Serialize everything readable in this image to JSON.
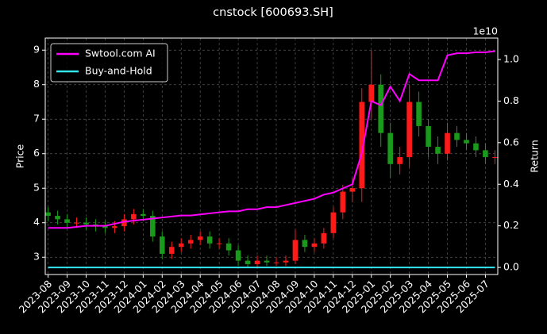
{
  "chart_data": {
    "type": "candlestick",
    "title": "cnstock [600693.SH]",
    "ylabel": "Price",
    "y2label": "Return",
    "y2_offset_label": "1e10",
    "x": [
      0,
      0.5,
      1,
      1.5,
      2,
      2.5,
      3,
      3.5,
      4,
      4.5,
      5,
      5.5,
      6,
      6.5,
      7,
      7.5,
      8,
      8.5,
      9,
      9.5,
      10,
      10.5,
      11,
      11.5,
      12,
      12.5,
      13,
      13.5,
      14,
      14.5,
      15,
      15.5,
      16,
      16.5,
      17,
      17.5,
      18,
      18.5,
      19,
      19.5,
      20,
      20.5,
      21,
      21.5,
      22,
      22.5,
      23,
      23.5
    ],
    "open": [
      4.3,
      4.2,
      4.1,
      4.0,
      4.0,
      3.95,
      3.9,
      3.85,
      3.9,
      4.1,
      4.25,
      4.2,
      3.6,
      3.1,
      3.3,
      3.4,
      3.5,
      3.6,
      3.4,
      3.4,
      3.2,
      2.9,
      2.8,
      2.9,
      2.85,
      2.85,
      2.9,
      3.5,
      3.3,
      3.4,
      3.7,
      4.3,
      4.9,
      5.0,
      7.5,
      8.0,
      6.6,
      5.7,
      5.9,
      7.5,
      6.8,
      6.2,
      6.0,
      6.6,
      6.4,
      6.3,
      6.1,
      5.9
    ],
    "high": [
      4.45,
      4.35,
      4.25,
      4.15,
      4.15,
      4.1,
      4.05,
      4.05,
      4.25,
      4.4,
      4.4,
      4.35,
      3.75,
      3.45,
      3.55,
      3.65,
      3.75,
      3.75,
      3.55,
      3.55,
      3.35,
      3.05,
      3.05,
      3.05,
      3.0,
      3.05,
      3.8,
      3.65,
      3.55,
      3.85,
      4.45,
      5.1,
      5.3,
      7.9,
      9.0,
      8.3,
      6.9,
      6.2,
      8.0,
      7.8,
      7.0,
      6.5,
      6.9,
      6.8,
      6.6,
      6.5,
      6.3,
      6.1
    ],
    "low": [
      4.05,
      3.95,
      3.85,
      3.85,
      3.8,
      3.75,
      3.7,
      3.7,
      3.75,
      3.95,
      4.05,
      3.45,
      2.95,
      2.95,
      3.15,
      3.25,
      3.35,
      3.25,
      3.25,
      3.05,
      2.75,
      2.7,
      2.7,
      2.75,
      2.75,
      2.75,
      2.8,
      3.15,
      3.15,
      3.25,
      3.55,
      4.1,
      4.6,
      4.6,
      7.0,
      6.2,
      5.3,
      5.4,
      5.6,
      6.5,
      5.9,
      5.7,
      5.8,
      6.2,
      6.1,
      5.9,
      5.7,
      5.7
    ],
    "close": [
      4.2,
      4.1,
      4.0,
      4.0,
      3.95,
      3.9,
      3.85,
      3.9,
      4.1,
      4.25,
      4.2,
      3.6,
      3.1,
      3.3,
      3.4,
      3.5,
      3.6,
      3.4,
      3.4,
      3.2,
      2.9,
      2.8,
      2.9,
      2.85,
      2.85,
      2.9,
      3.5,
      3.3,
      3.4,
      3.7,
      4.3,
      4.9,
      5.0,
      7.5,
      8.0,
      6.6,
      5.7,
      5.9,
      7.5,
      6.8,
      6.2,
      6.0,
      6.6,
      6.4,
      6.3,
      6.1,
      5.9,
      5.9
    ],
    "up_color": "#ff1a1a",
    "down_color": "#1a9a1a",
    "series": [
      {
        "name": "Swtool.com AI",
        "color": "#ff00ff",
        "axis": "y2",
        "values": [
          0.19,
          0.19,
          0.19,
          0.195,
          0.2,
          0.2,
          0.2,
          0.21,
          0.22,
          0.225,
          0.23,
          0.235,
          0.24,
          0.245,
          0.25,
          0.25,
          0.255,
          0.26,
          0.265,
          0.27,
          0.27,
          0.28,
          0.28,
          0.29,
          0.29,
          0.3,
          0.31,
          0.32,
          0.33,
          0.35,
          0.36,
          0.38,
          0.4,
          0.55,
          0.8,
          0.78,
          0.87,
          0.8,
          0.93,
          0.9,
          0.9,
          0.9,
          1.02,
          1.03,
          1.03,
          1.035,
          1.035,
          1.04
        ]
      },
      {
        "name": "Buy-and-Hold",
        "color": "#33e6f0",
        "axis": "y2",
        "values": [
          0,
          0,
          0,
          0,
          0,
          0,
          0,
          0,
          0,
          0,
          0,
          0,
          0,
          0,
          0,
          0,
          0,
          0,
          0,
          0,
          0,
          0,
          0,
          0,
          0,
          0,
          0,
          0,
          0,
          0,
          0,
          0,
          0,
          0,
          0,
          0,
          0,
          0,
          0,
          0,
          0,
          0,
          0,
          0,
          0,
          0,
          0,
          0
        ]
      }
    ],
    "xlim": [
      -0.15,
      23.65
    ],
    "xticks": [
      {
        "value": 0,
        "label": "2023-08"
      },
      {
        "value": 1,
        "label": "2023-09"
      },
      {
        "value": 2,
        "label": "2023-10"
      },
      {
        "value": 3,
        "label": "2023-11"
      },
      {
        "value": 4,
        "label": "2023-12"
      },
      {
        "value": 5,
        "label": "2024-01"
      },
      {
        "value": 6,
        "label": "2024-02"
      },
      {
        "value": 7,
        "label": "2024-03"
      },
      {
        "value": 8,
        "label": "2024-04"
      },
      {
        "value": 9,
        "label": "2024-05"
      },
      {
        "value": 10,
        "label": "2024-06"
      },
      {
        "value": 11,
        "label": "2024-07"
      },
      {
        "value": 12,
        "label": "2024-08"
      },
      {
        "value": 13,
        "label": "2024-09"
      },
      {
        "value": 14,
        "label": "2024-10"
      },
      {
        "value": 15,
        "label": "2024-11"
      },
      {
        "value": 16,
        "label": "2024-12"
      },
      {
        "value": 17,
        "label": "2025-01"
      },
      {
        "value": 18,
        "label": "2025-02"
      },
      {
        "value": 19,
        "label": "2025-03"
      },
      {
        "value": 20,
        "label": "2025-04"
      },
      {
        "value": 21,
        "label": "2025-05"
      },
      {
        "value": 22,
        "label": "2025-06"
      },
      {
        "value": 23,
        "label": "2025-07"
      }
    ],
    "ylim": [
      2.5,
      9.35
    ],
    "yticks": [
      3,
      4,
      5,
      6,
      7,
      8,
      9
    ],
    "y2lim": [
      -0.034,
      1.103
    ],
    "y2ticks": [
      {
        "value": 0,
        "label": "0.0"
      },
      0.2,
      0.4,
      0.6,
      0.8,
      {
        "value": 1,
        "label": "1.0"
      }
    ],
    "grid": true,
    "legend": "upper left"
  }
}
